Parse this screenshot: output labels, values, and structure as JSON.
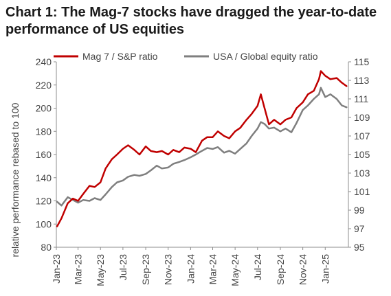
{
  "chart_data": {
    "type": "line",
    "title": "Chart 1: The Mag-7 stocks have dragged the year-to-date performance of US equities",
    "ylabel": "relative performance rebased to 100",
    "y2label": "",
    "xlabel": "",
    "ylim": [
      80,
      240
    ],
    "y2lim": [
      95,
      115
    ],
    "yticks": [
      "80",
      "100",
      "120",
      "140",
      "160",
      "180",
      "200",
      "220",
      "240"
    ],
    "y2ticks": [
      "95",
      "97",
      "99",
      "101",
      "103",
      "105",
      "107",
      "109",
      "111",
      "113",
      "115"
    ],
    "categories": [
      "Jan-23",
      "Mar-23",
      "May-23",
      "Jul-23",
      "Sep-23",
      "Nov-23",
      "Jan-24",
      "Mar-24",
      "May-24",
      "Jul-24",
      "Sep-24",
      "Nov-24",
      "Jan-25"
    ],
    "grid": false,
    "legend_position": "top",
    "series": [
      {
        "name": "Mag 7 / S&P ratio",
        "axis": "left",
        "color": "#c00000",
        "x": [
          "2023-01-03",
          "2023-01-15",
          "2023-02-01",
          "2023-02-15",
          "2023-03-01",
          "2023-03-15",
          "2023-04-01",
          "2023-04-15",
          "2023-05-01",
          "2023-05-15",
          "2023-06-01",
          "2023-06-15",
          "2023-07-01",
          "2023-07-15",
          "2023-08-01",
          "2023-08-15",
          "2023-09-01",
          "2023-09-15",
          "2023-10-01",
          "2023-10-15",
          "2023-11-01",
          "2023-11-15",
          "2023-12-01",
          "2023-12-15",
          "2024-01-01",
          "2024-01-15",
          "2024-02-01",
          "2024-02-15",
          "2024-03-01",
          "2024-03-15",
          "2024-04-01",
          "2024-04-15",
          "2024-05-01",
          "2024-05-15",
          "2024-06-01",
          "2024-06-15",
          "2024-07-01",
          "2024-07-10",
          "2024-07-20",
          "2024-08-01",
          "2024-08-15",
          "2024-09-01",
          "2024-09-15",
          "2024-10-01",
          "2024-10-15",
          "2024-11-01",
          "2024-11-15",
          "2024-12-01",
          "2024-12-15",
          "2024-12-20",
          "2025-01-01",
          "2025-01-15",
          "2025-02-01",
          "2025-02-15",
          "2025-02-28"
        ],
        "values": [
          98,
          105,
          118,
          122,
          120,
          126,
          133,
          132,
          136,
          148,
          156,
          160,
          165,
          168,
          164,
          160,
          167,
          163,
          162,
          163,
          160,
          164,
          162,
          166,
          165,
          162,
          172,
          175,
          175,
          180,
          176,
          174,
          180,
          183,
          190,
          195,
          202,
          212,
          200,
          186,
          190,
          186,
          190,
          192,
          200,
          205,
          212,
          215,
          225,
          232,
          228,
          225,
          226,
          222,
          219
        ]
      },
      {
        "name": "USA / Global equity ratio",
        "axis": "right",
        "color": "#7f7f7f",
        "x": [
          "2023-01-03",
          "2023-01-15",
          "2023-02-01",
          "2023-02-15",
          "2023-03-01",
          "2023-03-15",
          "2023-04-01",
          "2023-04-15",
          "2023-05-01",
          "2023-05-15",
          "2023-06-01",
          "2023-06-15",
          "2023-07-01",
          "2023-07-15",
          "2023-08-01",
          "2023-08-15",
          "2023-09-01",
          "2023-09-15",
          "2023-10-01",
          "2023-10-15",
          "2023-11-01",
          "2023-11-15",
          "2023-12-01",
          "2023-12-15",
          "2024-01-01",
          "2024-01-15",
          "2024-02-01",
          "2024-02-15",
          "2024-03-01",
          "2024-03-15",
          "2024-04-01",
          "2024-04-15",
          "2024-05-01",
          "2024-05-15",
          "2024-06-01",
          "2024-06-15",
          "2024-07-01",
          "2024-07-10",
          "2024-07-20",
          "2024-08-01",
          "2024-08-15",
          "2024-09-01",
          "2024-09-15",
          "2024-10-01",
          "2024-10-15",
          "2024-11-01",
          "2024-11-15",
          "2024-12-01",
          "2024-12-15",
          "2024-12-20",
          "2025-01-01",
          "2025-01-15",
          "2025-02-01",
          "2025-02-15",
          "2025-02-28"
        ],
        "values": [
          99.9,
          99.5,
          100.4,
          100.1,
          99.8,
          100.1,
          100.0,
          100.3,
          100.1,
          100.7,
          101.5,
          102.0,
          102.2,
          102.6,
          102.8,
          102.7,
          102.9,
          103.3,
          103.8,
          103.5,
          103.6,
          104.0,
          104.2,
          104.4,
          104.7,
          105.0,
          105.4,
          105.7,
          105.6,
          105.8,
          105.2,
          105.4,
          105.1,
          105.6,
          106.2,
          107.0,
          107.8,
          108.5,
          108.3,
          107.8,
          107.9,
          107.5,
          107.8,
          107.4,
          108.4,
          109.8,
          110.3,
          111.0,
          111.5,
          112.2,
          111.2,
          111.5,
          111.0,
          110.3,
          110.1
        ]
      }
    ]
  }
}
